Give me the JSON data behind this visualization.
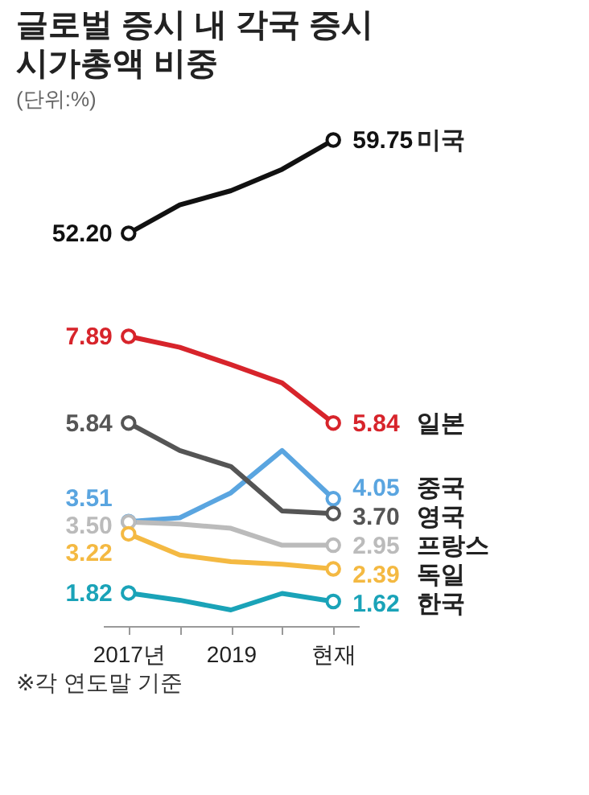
{
  "chart_data": [
    {
      "type": "line",
      "title": [
        "글로벌 증시 내 각국 증시",
        "시가총액 비중"
      ],
      "subtitle": "(단위:%)",
      "categories": [
        null,
        null,
        null,
        null,
        null
      ],
      "tick_labels": false,
      "series": [
        {
          "name": "미국",
          "color": "#111111",
          "values": [
            52.2,
            54.5,
            55.65,
            57.38,
            59.75
          ],
          "value_labels": [
            "52.20",
            null,
            null,
            null,
            "59.75"
          ]
        }
      ]
    },
    {
      "type": "line",
      "categories": [
        "2017년",
        null,
        "2019",
        null,
        "현재"
      ],
      "tick_labels": "x",
      "annotations": [
        "※각 연도말 기준"
      ],
      "series": [
        {
          "name": "일본",
          "color": "#d7242b",
          "values": [
            7.89,
            7.63,
            7.22,
            6.79,
            5.84
          ],
          "value_labels": [
            "7.89",
            null,
            null,
            null,
            "5.84"
          ]
        },
        {
          "name": "중국",
          "color": "#5aa5e0",
          "values": [
            3.51,
            3.6,
            4.19,
            5.19,
            4.05
          ],
          "value_labels": [
            "3.51",
            null,
            null,
            null,
            "4.05"
          ]
        },
        {
          "name": "영국",
          "color": "#555555",
          "values": [
            5.84,
            5.19,
            4.81,
            3.76,
            3.7
          ],
          "value_labels": [
            "5.84",
            null,
            null,
            null,
            "3.70"
          ]
        },
        {
          "name": "프랑스",
          "color": "#bbbbbb",
          "values": [
            3.5,
            3.45,
            3.35,
            2.95,
            2.95
          ],
          "value_labels": [
            "3.50",
            null,
            null,
            null,
            "2.95"
          ]
        },
        {
          "name": "독일",
          "color": "#f4b942",
          "values": [
            3.22,
            2.72,
            2.56,
            2.5,
            2.39
          ],
          "value_labels": [
            "3.22",
            null,
            null,
            null,
            "2.39"
          ]
        },
        {
          "name": "한국",
          "color": "#1aa3b8",
          "values": [
            1.82,
            1.65,
            1.42,
            1.81,
            1.62
          ],
          "value_labels": [
            "1.82",
            null,
            null,
            null,
            "1.62"
          ]
        }
      ]
    }
  ]
}
